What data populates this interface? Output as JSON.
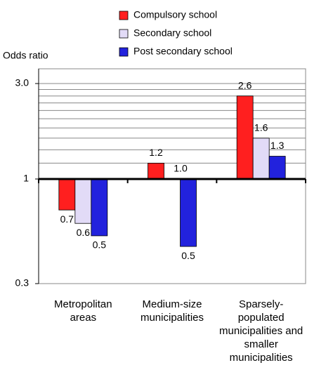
{
  "chart_data": {
    "type": "bar",
    "y_label": "Odds ratio",
    "categories": [
      "Metropolitan areas",
      "Medium-size municipalities",
      "Sparsely-populated municipalities and smaller municipalities"
    ],
    "series": [
      {
        "name": "Compulsory school",
        "color": "#ff1f1f",
        "values": [
          0.7,
          1.2,
          2.6
        ],
        "value_labels": [
          "0.7",
          "1.2",
          "2.6"
        ]
      },
      {
        "name": "Secondary school",
        "color": "#e2dbf7",
        "values": [
          0.6,
          1.0,
          1.6
        ],
        "value_labels": [
          "0.6",
          "1.0",
          "1.6"
        ]
      },
      {
        "name": "Post secondary school",
        "color": "#2222dd",
        "values": [
          0.52,
          0.46,
          1.3
        ],
        "value_labels": [
          "0.5",
          "0.5",
          "1.3"
        ]
      }
    ],
    "log_scale": true,
    "baseline": 1,
    "ylim": [
      0.3,
      3.0
    ],
    "yticks": [
      {
        "value": 3,
        "label": "3.0"
      },
      1,
      0.3
    ],
    "grid": true,
    "ygrid": [
      1.2,
      1.4,
      1.6,
      1.8,
      2.0,
      2.2,
      2.4,
      2.6,
      2.8
    ]
  }
}
